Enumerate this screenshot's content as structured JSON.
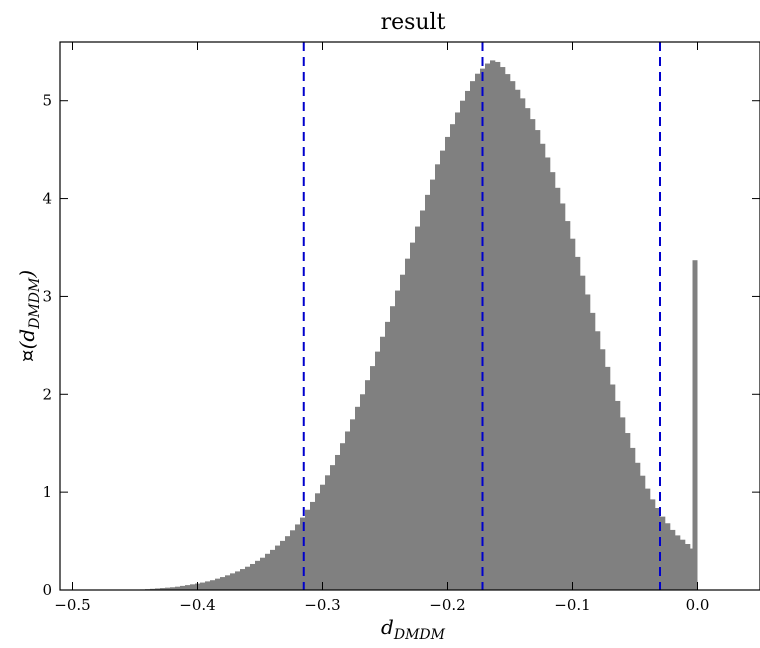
{
  "chart_data": {
    "type": "bar",
    "title": "result",
    "xlabel": {
      "main": "d",
      "sub": "DMDM"
    },
    "ylabel": {
      "prefix": "¤(",
      "main": "d",
      "sub": "DMDM",
      "suffix": ")"
    },
    "xlim": [
      -0.51,
      0.05
    ],
    "ylim": [
      0,
      5.6
    ],
    "x_ticks": [
      {
        "value": -0.5,
        "label": "−0.5"
      },
      {
        "value": -0.4,
        "label": "−0.4"
      },
      {
        "value": -0.3,
        "label": "−0.3"
      },
      {
        "value": -0.2,
        "label": "−0.2"
      },
      {
        "value": -0.1,
        "label": "−0.1"
      },
      {
        "value": 0.0,
        "label": "0.0"
      }
    ],
    "y_ticks": [
      {
        "value": 0,
        "label": "0"
      },
      {
        "value": 1,
        "label": "1"
      },
      {
        "value": 2,
        "label": "2"
      },
      {
        "value": 3,
        "label": "3"
      },
      {
        "value": 4,
        "label": "4"
      },
      {
        "value": 5,
        "label": "5"
      }
    ],
    "bar_color": "#808080",
    "vline_color": "#0000cc",
    "vlines": [
      -0.315,
      -0.172,
      -0.03
    ],
    "bin_width": 0.004,
    "bins": [
      {
        "x": -0.45,
        "y": 0.003
      },
      {
        "x": -0.44,
        "y": 0.01
      },
      {
        "x": -0.43,
        "y": 0.02
      },
      {
        "x": -0.42,
        "y": 0.03
      },
      {
        "x": -0.41,
        "y": 0.05
      },
      {
        "x": -0.4,
        "y": 0.07
      },
      {
        "x": -0.39,
        "y": 0.1
      },
      {
        "x": -0.38,
        "y": 0.14
      },
      {
        "x": -0.37,
        "y": 0.19
      },
      {
        "x": -0.36,
        "y": 0.25
      },
      {
        "x": -0.35,
        "y": 0.33
      },
      {
        "x": -0.34,
        "y": 0.43
      },
      {
        "x": -0.33,
        "y": 0.55
      },
      {
        "x": -0.32,
        "y": 0.7
      },
      {
        "x": -0.31,
        "y": 0.9
      },
      {
        "x": -0.3,
        "y": 1.12
      },
      {
        "x": -0.29,
        "y": 1.38
      },
      {
        "x": -0.28,
        "y": 1.68
      },
      {
        "x": -0.27,
        "y": 2.0
      },
      {
        "x": -0.26,
        "y": 2.36
      },
      {
        "x": -0.25,
        "y": 2.74
      },
      {
        "x": -0.24,
        "y": 3.14
      },
      {
        "x": -0.23,
        "y": 3.55
      },
      {
        "x": -0.22,
        "y": 3.96
      },
      {
        "x": -0.21,
        "y": 4.35
      },
      {
        "x": -0.2,
        "y": 4.7
      },
      {
        "x": -0.19,
        "y": 5.0
      },
      {
        "x": -0.18,
        "y": 5.25
      },
      {
        "x": -0.17,
        "y": 5.38
      },
      {
        "x": -0.165,
        "y": 5.42
      },
      {
        "x": -0.16,
        "y": 5.38
      },
      {
        "x": -0.15,
        "y": 5.2
      },
      {
        "x": -0.14,
        "y": 4.98
      },
      {
        "x": -0.13,
        "y": 4.7
      },
      {
        "x": -0.12,
        "y": 4.35
      },
      {
        "x": -0.11,
        "y": 3.95
      },
      {
        "x": -0.1,
        "y": 3.5
      },
      {
        "x": -0.09,
        "y": 3.02
      },
      {
        "x": -0.08,
        "y": 2.55
      },
      {
        "x": -0.07,
        "y": 2.1
      },
      {
        "x": -0.06,
        "y": 1.68
      },
      {
        "x": -0.05,
        "y": 1.3
      },
      {
        "x": -0.04,
        "y": 0.97
      },
      {
        "x": -0.03,
        "y": 0.75
      },
      {
        "x": -0.02,
        "y": 0.58
      },
      {
        "x": -0.01,
        "y": 0.47
      },
      {
        "x": -0.004,
        "y": 0.4
      },
      {
        "x": 0.0,
        "y": 3.37
      }
    ]
  }
}
